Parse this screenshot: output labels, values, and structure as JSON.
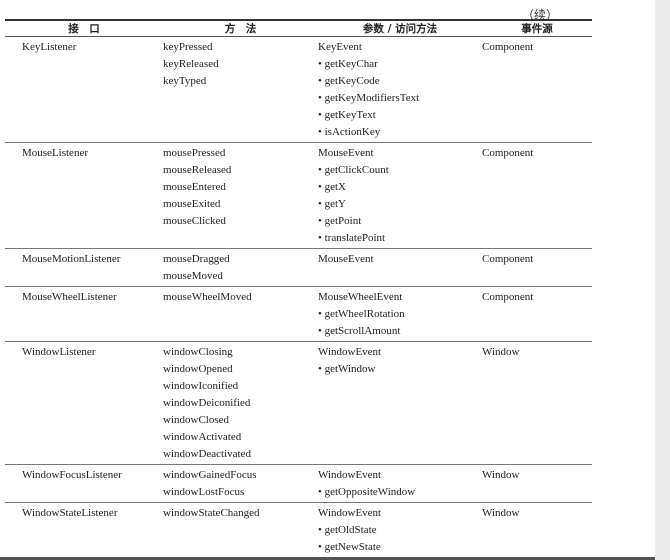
{
  "continued_label": "（续）",
  "headers": [
    "接　口",
    "方　法",
    "参数 / 访问方法",
    "事件源"
  ],
  "rows": [
    {
      "interface": "KeyListener",
      "methods": [
        "keyPressed",
        "keyReleased",
        "keyTyped"
      ],
      "params": [
        "KeyEvent",
        "• getKeyChar",
        "• getKeyCode",
        "• getKeyModifiersText",
        "• getKeyText",
        "• isActionKey"
      ],
      "source": "Component"
    },
    {
      "interface": "MouseListener",
      "methods": [
        "mousePressed",
        "mouseReleased",
        "mouseEntered",
        "mouseExited",
        "mouseClicked"
      ],
      "params": [
        "MouseEvent",
        "• getClickCount",
        "• getX",
        "• getY",
        "• getPoint",
        "• translatePoint"
      ],
      "source": "Component"
    },
    {
      "interface": "MouseMotionListener",
      "methods": [
        "mouseDragged",
        "mouseMoved"
      ],
      "params": [
        "MouseEvent"
      ],
      "source": "Component"
    },
    {
      "interface": "MouseWheelListener",
      "methods": [
        "mouseWheelMoved"
      ],
      "params": [
        "MouseWheelEvent",
        "• getWheelRotation",
        "• getScrollAmount"
      ],
      "source": "Component"
    },
    {
      "interface": "WindowListener",
      "methods": [
        "windowClosing",
        "windowOpened",
        "windowIconified",
        "windowDeiconified",
        "windowClosed",
        "windowActivated",
        "windowDeactivated"
      ],
      "params": [
        "WindowEvent",
        "• getWindow"
      ],
      "source": "Window"
    },
    {
      "interface": "WindowFocusListener",
      "methods": [
        "windowGainedFocus",
        "windowLostFocus"
      ],
      "params": [
        "WindowEvent",
        "• getOppositeWindow"
      ],
      "source": "Window"
    },
    {
      "interface": "WindowStateListener",
      "methods": [
        "windowStateChanged"
      ],
      "params": [
        "WindowEvent",
        "• getOldState",
        "• getNewState"
      ],
      "source": "Window"
    }
  ]
}
